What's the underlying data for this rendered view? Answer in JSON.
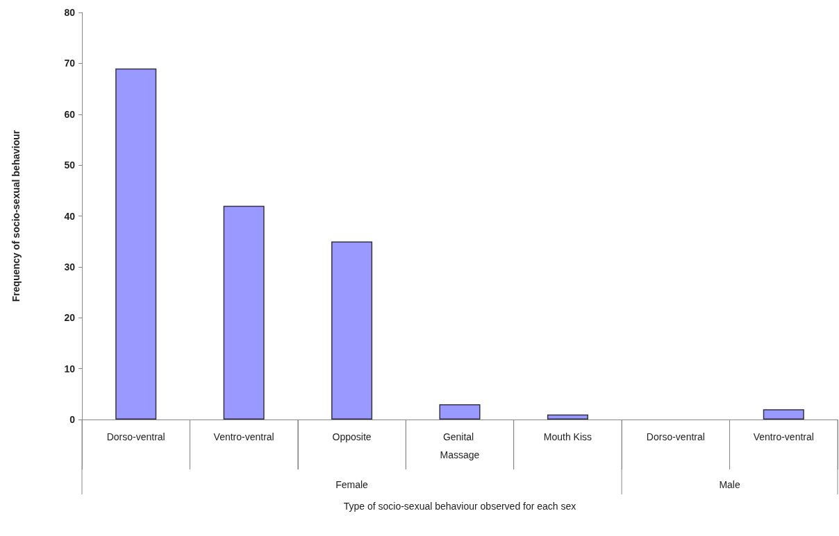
{
  "chart_data": {
    "type": "bar",
    "xlabel": "Type of socio-sexual behaviour observed for each sex",
    "ylabel": "Frequency of socio-sexual behaviour",
    "categories": [
      "Dorso-ventral",
      "Ventro-ventral",
      "Opposite",
      "Genital Massage",
      "Mouth Kiss",
      "Dorso-ventral",
      "Ventro-ventral"
    ],
    "values": [
      69,
      42,
      35,
      3,
      1,
      0,
      2
    ],
    "color": "#9999ff",
    "ylim": [
      0,
      80
    ],
    "yticks": [
      0,
      10,
      20,
      30,
      40,
      50,
      60,
      70,
      80
    ],
    "grid": false,
    "annotations": [
      "Female",
      "Male"
    ]
  }
}
